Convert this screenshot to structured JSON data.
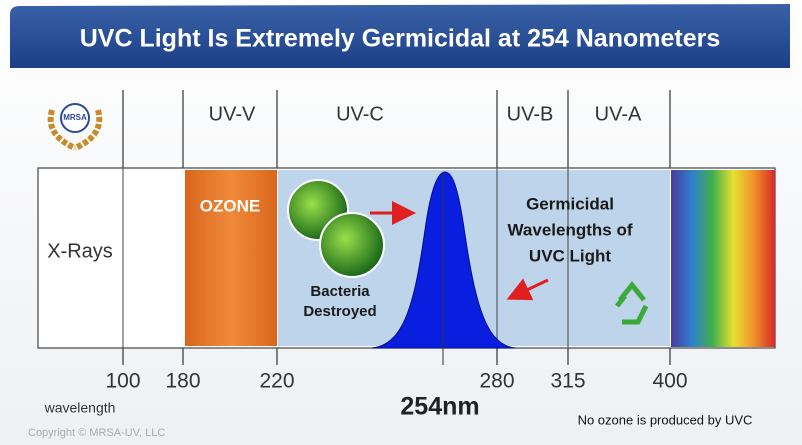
{
  "header": {
    "title": "UVC Light Is Extremely Germicidal at 254 Nanometers"
  },
  "logo": {
    "label": "MRSA"
  },
  "bands": [
    "UV-V",
    "UV-C",
    "UV-B",
    "UV-A"
  ],
  "regions": {
    "xrays": "X-Rays",
    "ozone": "OZONE"
  },
  "bacteria": [
    "Bacteria",
    "Destroyed"
  ],
  "germicidal": [
    "Germicidal",
    "Wavelengths of",
    "UVC Light"
  ],
  "scale": [
    "100",
    "180",
    "220",
    "280",
    "315",
    "400"
  ],
  "peak": "254nm",
  "axis_label": "wavelength",
  "note": "No ozone is produced by UVC",
  "copyright": "Copyright © MRSA-UV, LLC"
}
